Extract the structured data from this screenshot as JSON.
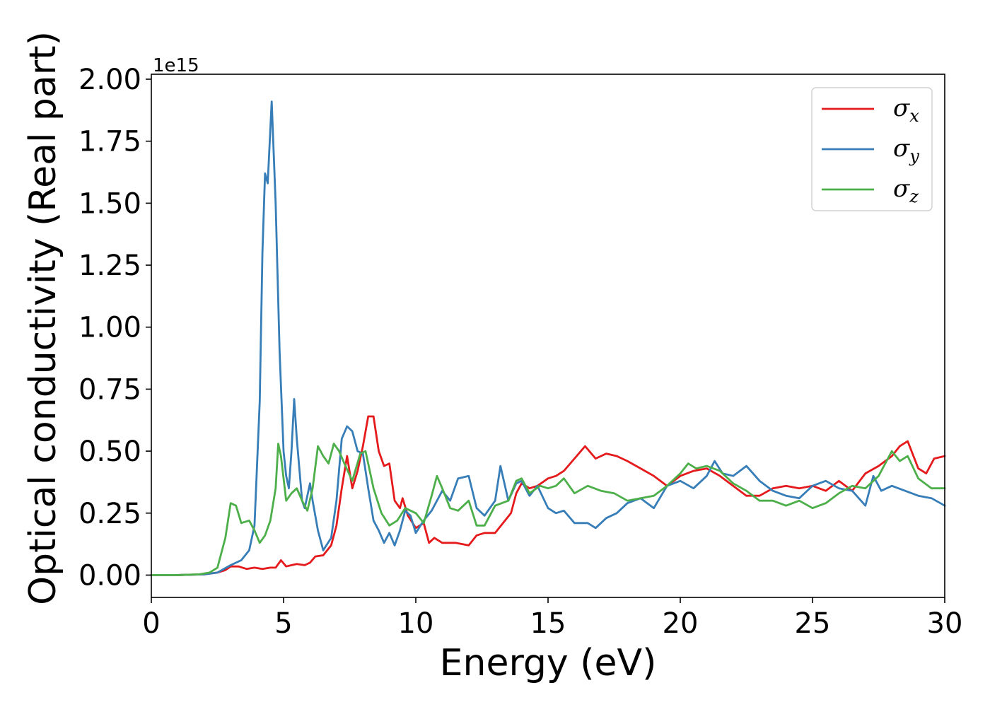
{
  "chart_data": {
    "type": "line",
    "title": "",
    "xlabel": "Energy (eV)",
    "ylabel": "Optical conductivity (Real part)",
    "y_offset_label": "1e15",
    "xlim": [
      0,
      30
    ],
    "ylim": [
      -0.09,
      2.02
    ],
    "x_ticks": [
      "0",
      "5",
      "10",
      "15",
      "20",
      "25",
      "30"
    ],
    "x_tick_values": [
      0,
      5,
      10,
      15,
      20,
      25,
      30
    ],
    "y_ticks": [
      "0.00",
      "0.25",
      "0.50",
      "0.75",
      "1.00",
      "1.25",
      "1.50",
      "1.75",
      "2.00"
    ],
    "y_tick_values": [
      0,
      0.25,
      0.5,
      0.75,
      1.0,
      1.25,
      1.5,
      1.75,
      2.0
    ],
    "grid": false,
    "legend_position": "top-right",
    "series": [
      {
        "name": "σx",
        "legend_symbol": "σ",
        "legend_subscript": "x",
        "color": "#e41a1c",
        "points": [
          [
            0,
            0
          ],
          [
            1,
            0
          ],
          [
            2,
            0.003
          ],
          [
            2.5,
            0.01
          ],
          [
            2.8,
            0.02
          ],
          [
            3,
            0.035
          ],
          [
            3.3,
            0.035
          ],
          [
            3.6,
            0.025
          ],
          [
            3.9,
            0.03
          ],
          [
            4.2,
            0.025
          ],
          [
            4.5,
            0.03
          ],
          [
            4.7,
            0.03
          ],
          [
            4.9,
            0.06
          ],
          [
            5.1,
            0.035
          ],
          [
            5.3,
            0.04
          ],
          [
            5.5,
            0.045
          ],
          [
            5.8,
            0.04
          ],
          [
            6,
            0.05
          ],
          [
            6.2,
            0.075
          ],
          [
            6.5,
            0.08
          ],
          [
            6.8,
            0.12
          ],
          [
            7,
            0.2
          ],
          [
            7.2,
            0.35
          ],
          [
            7.4,
            0.48
          ],
          [
            7.6,
            0.35
          ],
          [
            7.8,
            0.42
          ],
          [
            8,
            0.52
          ],
          [
            8.2,
            0.64
          ],
          [
            8.4,
            0.64
          ],
          [
            8.6,
            0.5
          ],
          [
            8.8,
            0.44
          ],
          [
            9,
            0.45
          ],
          [
            9.2,
            0.3
          ],
          [
            9.4,
            0.27
          ],
          [
            9.5,
            0.31
          ],
          [
            9.7,
            0.24
          ],
          [
            10,
            0.19
          ],
          [
            10.3,
            0.21
          ],
          [
            10.5,
            0.13
          ],
          [
            10.7,
            0.15
          ],
          [
            11,
            0.13
          ],
          [
            11.5,
            0.13
          ],
          [
            12,
            0.12
          ],
          [
            12.3,
            0.16
          ],
          [
            12.6,
            0.17
          ],
          [
            13,
            0.17
          ],
          [
            13.3,
            0.21
          ],
          [
            13.6,
            0.25
          ],
          [
            13.8,
            0.33
          ],
          [
            14,
            0.37
          ],
          [
            14.3,
            0.35
          ],
          [
            14.6,
            0.36
          ],
          [
            15,
            0.39
          ],
          [
            15.3,
            0.4
          ],
          [
            15.6,
            0.42
          ],
          [
            16,
            0.47
          ],
          [
            16.4,
            0.52
          ],
          [
            16.8,
            0.47
          ],
          [
            17.2,
            0.49
          ],
          [
            17.6,
            0.48
          ],
          [
            18,
            0.46
          ],
          [
            18.5,
            0.43
          ],
          [
            19,
            0.4
          ],
          [
            19.5,
            0.36
          ],
          [
            20,
            0.4
          ],
          [
            20.5,
            0.42
          ],
          [
            21,
            0.43
          ],
          [
            21.5,
            0.4
          ],
          [
            22,
            0.36
          ],
          [
            22.5,
            0.32
          ],
          [
            23,
            0.32
          ],
          [
            23.5,
            0.35
          ],
          [
            24,
            0.36
          ],
          [
            24.5,
            0.35
          ],
          [
            25,
            0.36
          ],
          [
            25.5,
            0.34
          ],
          [
            26,
            0.38
          ],
          [
            26.5,
            0.34
          ],
          [
            27,
            0.41
          ],
          [
            27.5,
            0.44
          ],
          [
            28,
            0.48
          ],
          [
            28.3,
            0.52
          ],
          [
            28.6,
            0.54
          ],
          [
            29,
            0.43
          ],
          [
            29.3,
            0.41
          ],
          [
            29.6,
            0.47
          ],
          [
            30,
            0.48
          ]
        ]
      },
      {
        "name": "σy",
        "legend_symbol": "σ",
        "legend_subscript": "y",
        "color": "#377eb8",
        "points": [
          [
            0,
            0
          ],
          [
            1,
            0
          ],
          [
            2,
            0.003
          ],
          [
            2.5,
            0.01
          ],
          [
            3,
            0.04
          ],
          [
            3.4,
            0.06
          ],
          [
            3.7,
            0.1
          ],
          [
            3.9,
            0.2
          ],
          [
            4.1,
            0.7
          ],
          [
            4.2,
            1.3
          ],
          [
            4.3,
            1.62
          ],
          [
            4.4,
            1.58
          ],
          [
            4.55,
            1.91
          ],
          [
            4.7,
            1.5
          ],
          [
            4.85,
            0.9
          ],
          [
            5,
            0.5
          ],
          [
            5.1,
            0.4
          ],
          [
            5.2,
            0.35
          ],
          [
            5.3,
            0.5
          ],
          [
            5.4,
            0.71
          ],
          [
            5.5,
            0.55
          ],
          [
            5.7,
            0.3
          ],
          [
            5.8,
            0.27
          ],
          [
            6,
            0.37
          ],
          [
            6.1,
            0.3
          ],
          [
            6.3,
            0.18
          ],
          [
            6.5,
            0.1
          ],
          [
            6.8,
            0.15
          ],
          [
            7,
            0.3
          ],
          [
            7.2,
            0.55
          ],
          [
            7.4,
            0.6
          ],
          [
            7.6,
            0.58
          ],
          [
            7.8,
            0.5
          ],
          [
            8,
            0.49
          ],
          [
            8.2,
            0.35
          ],
          [
            8.4,
            0.22
          ],
          [
            8.6,
            0.18
          ],
          [
            8.8,
            0.13
          ],
          [
            9,
            0.17
          ],
          [
            9.2,
            0.12
          ],
          [
            9.4,
            0.18
          ],
          [
            9.6,
            0.26
          ],
          [
            9.8,
            0.24
          ],
          [
            10,
            0.17
          ],
          [
            10.3,
            0.22
          ],
          [
            10.6,
            0.26
          ],
          [
            11,
            0.34
          ],
          [
            11.3,
            0.3
          ],
          [
            11.6,
            0.39
          ],
          [
            12,
            0.4
          ],
          [
            12.3,
            0.27
          ],
          [
            12.6,
            0.24
          ],
          [
            13,
            0.3
          ],
          [
            13.2,
            0.44
          ],
          [
            13.5,
            0.3
          ],
          [
            13.8,
            0.37
          ],
          [
            14,
            0.38
          ],
          [
            14.3,
            0.32
          ],
          [
            14.6,
            0.36
          ],
          [
            15,
            0.27
          ],
          [
            15.3,
            0.25
          ],
          [
            15.6,
            0.26
          ],
          [
            16,
            0.21
          ],
          [
            16.5,
            0.21
          ],
          [
            16.8,
            0.19
          ],
          [
            17.2,
            0.23
          ],
          [
            17.6,
            0.25
          ],
          [
            18,
            0.29
          ],
          [
            18.5,
            0.31
          ],
          [
            19,
            0.27
          ],
          [
            19.5,
            0.36
          ],
          [
            20,
            0.38
          ],
          [
            20.5,
            0.35
          ],
          [
            21,
            0.4
          ],
          [
            21.3,
            0.46
          ],
          [
            21.6,
            0.41
          ],
          [
            22,
            0.4
          ],
          [
            22.5,
            0.44
          ],
          [
            23,
            0.38
          ],
          [
            23.5,
            0.34
          ],
          [
            24,
            0.32
          ],
          [
            24.5,
            0.31
          ],
          [
            25,
            0.36
          ],
          [
            25.5,
            0.38
          ],
          [
            26,
            0.35
          ],
          [
            26.5,
            0.34
          ],
          [
            27,
            0.28
          ],
          [
            27.3,
            0.4
          ],
          [
            27.6,
            0.34
          ],
          [
            28,
            0.36
          ],
          [
            28.5,
            0.34
          ],
          [
            29,
            0.32
          ],
          [
            29.5,
            0.31
          ],
          [
            30,
            0.28
          ]
        ]
      },
      {
        "name": "σz",
        "legend_symbol": "σ",
        "legend_subscript": "z",
        "color": "#4daf4a",
        "points": [
          [
            0,
            0
          ],
          [
            1,
            0
          ],
          [
            1.8,
            0.003
          ],
          [
            2.2,
            0.01
          ],
          [
            2.5,
            0.03
          ],
          [
            2.8,
            0.15
          ],
          [
            3,
            0.29
          ],
          [
            3.2,
            0.28
          ],
          [
            3.4,
            0.21
          ],
          [
            3.7,
            0.22
          ],
          [
            3.9,
            0.18
          ],
          [
            4.1,
            0.13
          ],
          [
            4.3,
            0.16
          ],
          [
            4.5,
            0.22
          ],
          [
            4.7,
            0.35
          ],
          [
            4.8,
            0.53
          ],
          [
            4.9,
            0.48
          ],
          [
            5.1,
            0.3
          ],
          [
            5.3,
            0.33
          ],
          [
            5.5,
            0.35
          ],
          [
            5.7,
            0.3
          ],
          [
            5.9,
            0.26
          ],
          [
            6.1,
            0.35
          ],
          [
            6.3,
            0.52
          ],
          [
            6.5,
            0.48
          ],
          [
            6.7,
            0.45
          ],
          [
            6.9,
            0.53
          ],
          [
            7.1,
            0.5
          ],
          [
            7.3,
            0.45
          ],
          [
            7.6,
            0.38
          ],
          [
            7.9,
            0.49
          ],
          [
            8.1,
            0.5
          ],
          [
            8.4,
            0.35
          ],
          [
            8.7,
            0.25
          ],
          [
            9,
            0.2
          ],
          [
            9.3,
            0.22
          ],
          [
            9.6,
            0.27
          ],
          [
            10,
            0.25
          ],
          [
            10.3,
            0.21
          ],
          [
            10.6,
            0.32
          ],
          [
            10.8,
            0.4
          ],
          [
            11,
            0.35
          ],
          [
            11.3,
            0.27
          ],
          [
            11.6,
            0.26
          ],
          [
            12,
            0.3
          ],
          [
            12.3,
            0.2
          ],
          [
            12.6,
            0.2
          ],
          [
            13,
            0.28
          ],
          [
            13.5,
            0.3
          ],
          [
            13.8,
            0.38
          ],
          [
            14,
            0.39
          ],
          [
            14.3,
            0.33
          ],
          [
            14.7,
            0.36
          ],
          [
            15,
            0.35
          ],
          [
            15.3,
            0.36
          ],
          [
            15.6,
            0.39
          ],
          [
            16,
            0.33
          ],
          [
            16.5,
            0.36
          ],
          [
            17,
            0.34
          ],
          [
            17.5,
            0.33
          ],
          [
            18,
            0.3
          ],
          [
            18.5,
            0.31
          ],
          [
            19,
            0.32
          ],
          [
            19.5,
            0.36
          ],
          [
            20,
            0.41
          ],
          [
            20.3,
            0.45
          ],
          [
            20.6,
            0.43
          ],
          [
            21,
            0.44
          ],
          [
            21.5,
            0.42
          ],
          [
            22,
            0.37
          ],
          [
            22.5,
            0.34
          ],
          [
            23,
            0.3
          ],
          [
            23.5,
            0.3
          ],
          [
            24,
            0.28
          ],
          [
            24.5,
            0.3
          ],
          [
            25,
            0.27
          ],
          [
            25.5,
            0.29
          ],
          [
            26,
            0.33
          ],
          [
            26.5,
            0.36
          ],
          [
            27,
            0.35
          ],
          [
            27.5,
            0.4
          ],
          [
            28,
            0.5
          ],
          [
            28.3,
            0.46
          ],
          [
            28.6,
            0.48
          ],
          [
            29,
            0.39
          ],
          [
            29.5,
            0.35
          ],
          [
            30,
            0.35
          ]
        ]
      }
    ]
  }
}
